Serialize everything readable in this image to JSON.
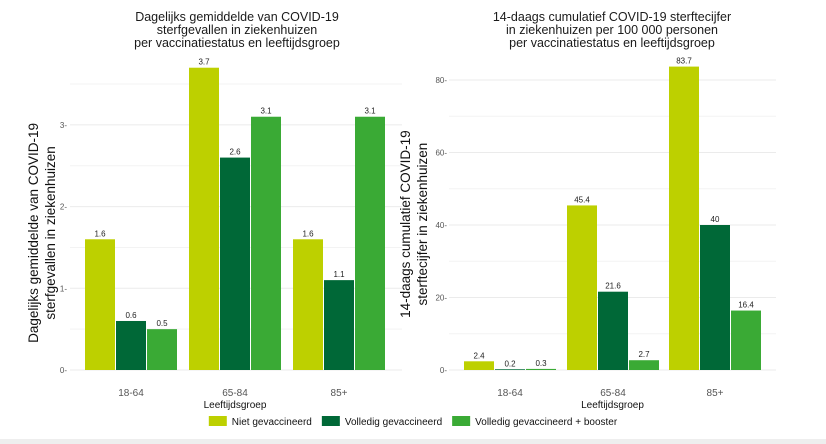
{
  "legend": [
    {
      "label": "Niet gevaccineerd",
      "color": "#bdd000"
    },
    {
      "label": "Volledig gevaccineerd",
      "color": "#006837"
    },
    {
      "label": "Volledig gevaccineerd + booster",
      "color": "#3aaa35"
    }
  ],
  "chart_data": [
    {
      "type": "bar",
      "title": [
        "Dagelijks gemiddelde van COVID-19",
        "sterfgevallen in ziekenhuizen",
        "per vaccinatiestatus en leeftijdsgroep"
      ],
      "ylabel": [
        "Dagelijks gemiddelde van COVID-19",
        "sterfgevallen in ziekenhuizen"
      ],
      "xlabel": "Leeftijdsgroep",
      "categories": [
        "18-64",
        "65-84",
        "85+"
      ],
      "ylim": [
        0,
        3.6
      ],
      "yticks": [
        0,
        1,
        2,
        3
      ],
      "series": [
        {
          "name": "Niet gevaccineerd",
          "values": [
            1.6,
            3.7,
            1.6
          ],
          "labels": [
            "1.6",
            "3.7",
            "1.6"
          ]
        },
        {
          "name": "Volledig gevaccineerd",
          "values": [
            0.6,
            2.6,
            1.1
          ],
          "labels": [
            "0.6",
            "2.6",
            "1.1"
          ]
        },
        {
          "name": "Volledig gevaccineerd + booster",
          "values": [
            0.5,
            3.1,
            3.1
          ],
          "labels": [
            "0.5",
            "3.1",
            "3.1"
          ]
        }
      ]
    },
    {
      "type": "bar",
      "title": [
        "14-daags cumulatief COVID-19 sterftecijfer",
        "in ziekenhuizen per 100 000 personen",
        "per vaccinatiestatus en leeftijdsgroep"
      ],
      "ylabel": [
        "14-daags cumulatief COVID-19",
        "sterftecijfer in ziekenhuizen"
      ],
      "xlabel": "Leeftijdsgroep",
      "categories": [
        "18-64",
        "65-84",
        "85+"
      ],
      "ylim": [
        0,
        86
      ],
      "yticks": [
        0,
        20,
        40,
        60,
        80
      ],
      "series": [
        {
          "name": "Niet gevaccineerd",
          "values": [
            2.4,
            45.4,
            83.7
          ],
          "labels": [
            "2.4",
            "45.4",
            "83.7"
          ]
        },
        {
          "name": "Volledig gevaccineerd",
          "values": [
            0.2,
            21.6,
            40
          ],
          "labels": [
            "0.2",
            "21.6",
            "40"
          ]
        },
        {
          "name": "Volledig gevaccineerd + booster",
          "values": [
            0.3,
            2.7,
            16.4
          ],
          "labels": [
            "0.3",
            "2.7",
            "16.4"
          ]
        }
      ]
    }
  ]
}
